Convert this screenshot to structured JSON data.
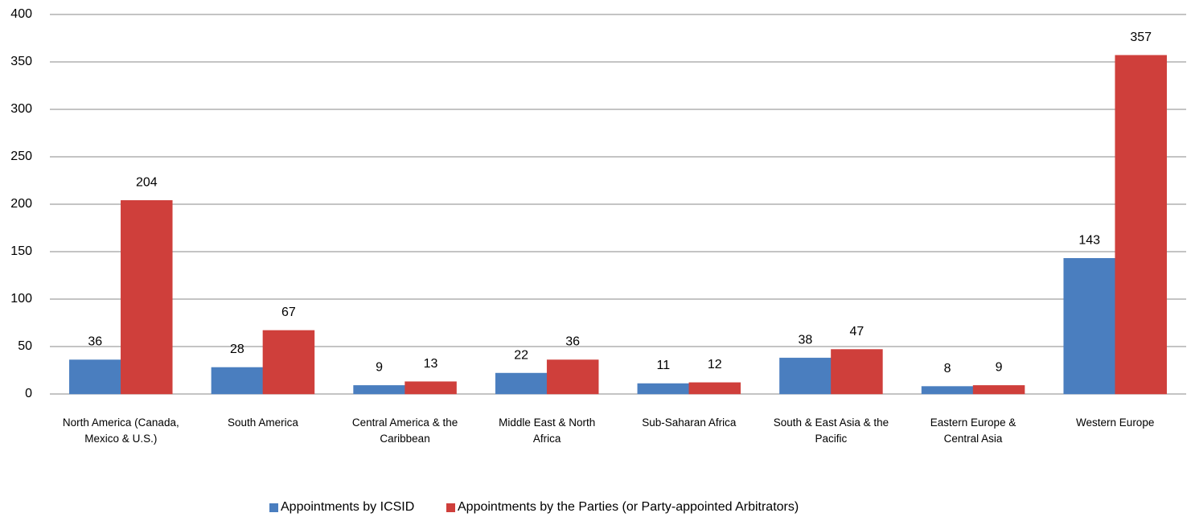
{
  "chart_data": {
    "type": "bar",
    "categories": [
      "North America (Canada, Mexico & U.S.)",
      "South America",
      "Central America & the Caribbean",
      "Middle East & North Africa",
      "Sub-Saharan Africa",
      "South & East Asia & the Pacific",
      "Eastern Europe & Central Asia",
      "Western Europe"
    ],
    "series": [
      {
        "name": "Appointments by ICSID",
        "color": "#4a7ebf",
        "values": [
          36,
          28,
          9,
          22,
          11,
          38,
          8,
          143
        ]
      },
      {
        "name": "Appointments by the Parties (or Party-appointed Arbitrators)",
        "color": "#cf3f3b",
        "values": [
          204,
          67,
          13,
          36,
          12,
          47,
          9,
          357
        ]
      }
    ],
    "ylim": [
      0,
      400
    ],
    "yticks": [
      0,
      50,
      100,
      150,
      200,
      250,
      300,
      350,
      400
    ],
    "grid": true,
    "legend": "bottom"
  }
}
